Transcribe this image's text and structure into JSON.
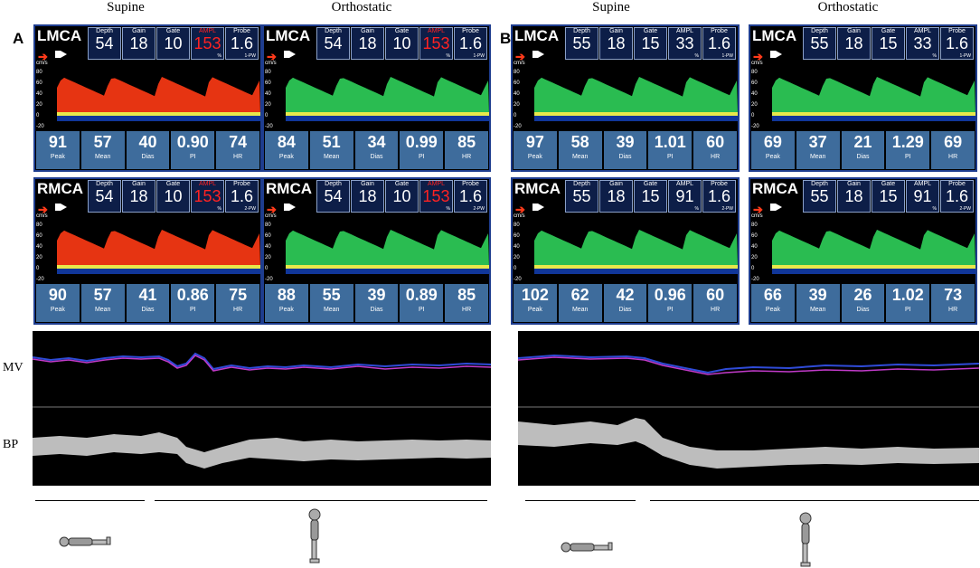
{
  "panels": [
    {
      "label": "A",
      "column_headers": [
        "Supine",
        "Orthostatic"
      ],
      "monitors": [
        {
          "vessel": "LMCA",
          "params": [
            {
              "label": "Depth",
              "value": "54"
            },
            {
              "label": "Gain",
              "value": "18"
            },
            {
              "label": "Gate",
              "value": "10"
            },
            {
              "label": "AMPL",
              "value": "153",
              "sub": "%",
              "highlight": true
            },
            {
              "label": "Probe",
              "value": "1.6",
              "sub": "1-PW"
            }
          ],
          "stats": [
            {
              "value": "91",
              "label": "Peak"
            },
            {
              "value": "57",
              "label": "Mean"
            },
            {
              "value": "40",
              "label": "Dias"
            },
            {
              "value": "0.90",
              "label": "PI"
            },
            {
              "value": "74",
              "label": "HR"
            }
          ]
        },
        {
          "vessel": "LMCA",
          "params": [
            {
              "label": "Depth",
              "value": "54"
            },
            {
              "label": "Gain",
              "value": "18"
            },
            {
              "label": "Gate",
              "value": "10"
            },
            {
              "label": "AMPL",
              "value": "153",
              "sub": "%",
              "highlight": true
            },
            {
              "label": "Probe",
              "value": "1.6",
              "sub": "1-PW"
            }
          ],
          "stats": [
            {
              "value": "84",
              "label": "Peak"
            },
            {
              "value": "51",
              "label": "Mean"
            },
            {
              "value": "34",
              "label": "Dias"
            },
            {
              "value": "0.99",
              "label": "PI"
            },
            {
              "value": "85",
              "label": "HR"
            }
          ]
        },
        {
          "vessel": "RMCA",
          "params": [
            {
              "label": "Depth",
              "value": "54"
            },
            {
              "label": "Gain",
              "value": "18"
            },
            {
              "label": "Gate",
              "value": "10"
            },
            {
              "label": "AMPL",
              "value": "153",
              "sub": "%",
              "highlight": true
            },
            {
              "label": "Probe",
              "value": "1.6",
              "sub": "2-PW"
            }
          ],
          "stats": [
            {
              "value": "90",
              "label": "Peak"
            },
            {
              "value": "57",
              "label": "Mean"
            },
            {
              "value": "41",
              "label": "Dias"
            },
            {
              "value": "0.86",
              "label": "PI"
            },
            {
              "value": "75",
              "label": "HR"
            }
          ]
        },
        {
          "vessel": "RMCA",
          "params": [
            {
              "label": "Depth",
              "value": "54"
            },
            {
              "label": "Gain",
              "value": "18"
            },
            {
              "label": "Gate",
              "value": "10"
            },
            {
              "label": "AMPL",
              "value": "153",
              "sub": "%",
              "highlight": true
            },
            {
              "label": "Probe",
              "value": "1.6",
              "sub": "2-PW"
            }
          ],
          "stats": [
            {
              "value": "88",
              "label": "Peak"
            },
            {
              "value": "55",
              "label": "Mean"
            },
            {
              "value": "39",
              "label": "Dias"
            },
            {
              "value": "0.89",
              "label": "PI"
            },
            {
              "value": "85",
              "label": "HR"
            }
          ]
        }
      ]
    },
    {
      "label": "B",
      "column_headers": [
        "Supine",
        "Orthostatic"
      ],
      "monitors": [
        {
          "vessel": "LMCA",
          "params": [
            {
              "label": "Depth",
              "value": "55"
            },
            {
              "label": "Gain",
              "value": "18"
            },
            {
              "label": "Gate",
              "value": "15"
            },
            {
              "label": "AMPL",
              "value": "33",
              "sub": "%"
            },
            {
              "label": "Probe",
              "value": "1.6",
              "sub": "1-PW"
            }
          ],
          "stats": [
            {
              "value": "97",
              "label": "Peak"
            },
            {
              "value": "58",
              "label": "Mean"
            },
            {
              "value": "39",
              "label": "Dias"
            },
            {
              "value": "1.01",
              "label": "PI"
            },
            {
              "value": "60",
              "label": "HR"
            }
          ]
        },
        {
          "vessel": "LMCA",
          "params": [
            {
              "label": "Depth",
              "value": "55"
            },
            {
              "label": "Gain",
              "value": "18"
            },
            {
              "label": "Gate",
              "value": "15"
            },
            {
              "label": "AMPL",
              "value": "33",
              "sub": "%"
            },
            {
              "label": "Probe",
              "value": "1.6",
              "sub": "1-PW"
            }
          ],
          "stats": [
            {
              "value": "69",
              "label": "Peak"
            },
            {
              "value": "37",
              "label": "Mean"
            },
            {
              "value": "21",
              "label": "Dias"
            },
            {
              "value": "1.29",
              "label": "PI"
            },
            {
              "value": "69",
              "label": "HR"
            }
          ]
        },
        {
          "vessel": "RMCA",
          "params": [
            {
              "label": "Depth",
              "value": "55"
            },
            {
              "label": "Gain",
              "value": "18"
            },
            {
              "label": "Gate",
              "value": "15"
            },
            {
              "label": "AMPL",
              "value": "91",
              "sub": "%"
            },
            {
              "label": "Probe",
              "value": "1.6",
              "sub": "2-PW"
            }
          ],
          "stats": [
            {
              "value": "102",
              "label": "Peak"
            },
            {
              "value": "62",
              "label": "Mean"
            },
            {
              "value": "42",
              "label": "Dias"
            },
            {
              "value": "0.96",
              "label": "PI"
            },
            {
              "value": "60",
              "label": "HR"
            }
          ]
        },
        {
          "vessel": "RMCA",
          "params": [
            {
              "label": "Depth",
              "value": "55"
            },
            {
              "label": "Gain",
              "value": "18"
            },
            {
              "label": "Gate",
              "value": "15"
            },
            {
              "label": "AMPL",
              "value": "91",
              "sub": "%"
            },
            {
              "label": "Probe",
              "value": "1.6",
              "sub": "2-PW"
            }
          ],
          "stats": [
            {
              "value": "66",
              "label": "Peak"
            },
            {
              "value": "39",
              "label": "Mean"
            },
            {
              "value": "26",
              "label": "Dias"
            },
            {
              "value": "1.02",
              "label": "PI"
            },
            {
              "value": "73",
              "label": "HR"
            }
          ]
        }
      ]
    }
  ],
  "spectrum_axis": {
    "unit": "cm/s",
    "ticks": [
      "80",
      "60",
      "40",
      "20",
      "0",
      "-20"
    ]
  },
  "trace_labels": {
    "mv": "MV",
    "bp": "BP"
  },
  "colors": {
    "mv_blue": "#2f4bd8",
    "mv_magenta": "#c03ac8",
    "bp": "#bdbdbd",
    "stat_bg": "#3e6c9c",
    "highlight": "#ff2222"
  }
}
